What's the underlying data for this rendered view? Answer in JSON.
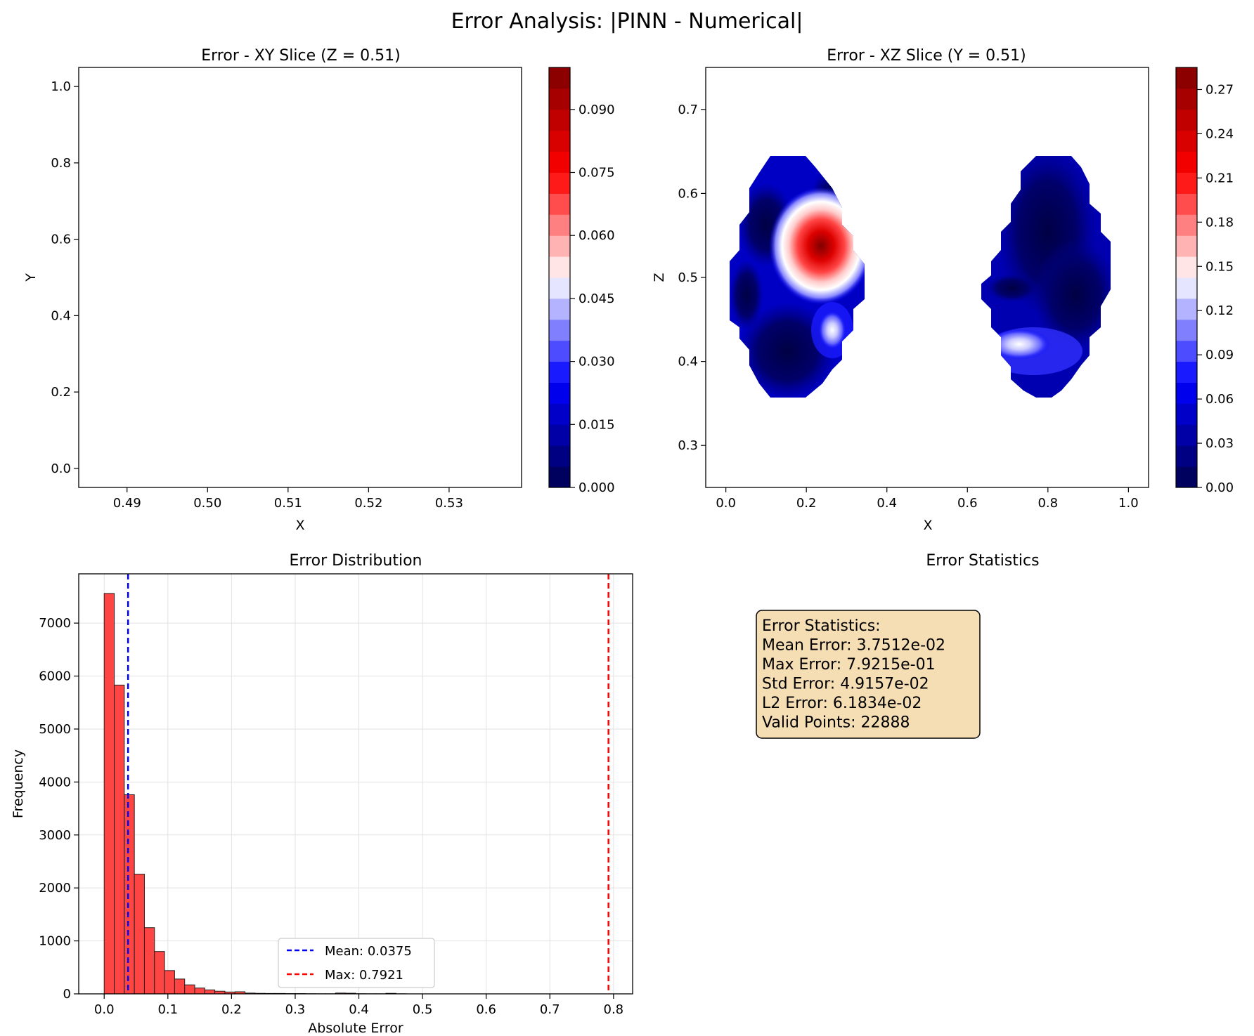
{
  "figure_title": "Error Analysis: |PINN - Numerical|",
  "chart_data": [
    {
      "type": "heatmap",
      "title": "Error - XY Slice (Z = 0.51)",
      "xlabel": "X",
      "ylabel": "Y",
      "xlim": [
        0.484,
        0.539
      ],
      "ylim": [
        -0.05,
        1.05
      ],
      "x_ticks": [
        "0.49",
        "0.50",
        "0.51",
        "0.52",
        "0.53"
      ],
      "y_ticks": [
        "0.0",
        "0.2",
        "0.4",
        "0.6",
        "0.8",
        "1.0"
      ],
      "colorbar": {
        "range": [
          0,
          0.1
        ],
        "ticks": [
          "0.000",
          "0.015",
          "0.030",
          "0.045",
          "0.060",
          "0.075",
          "0.090"
        ]
      }
    },
    {
      "type": "heatmap",
      "title": "Error - XZ Slice (Y = 0.51)",
      "xlabel": "X",
      "ylabel": "Z",
      "xlim": [
        -0.05,
        1.05
      ],
      "ylim": [
        0.25,
        0.75
      ],
      "x_ticks": [
        "0.0",
        "0.2",
        "0.4",
        "0.6",
        "0.8",
        "1.0"
      ],
      "y_ticks": [
        "0.3",
        "0.4",
        "0.5",
        "0.6",
        "0.7"
      ],
      "colorbar": {
        "range": [
          0,
          0.285
        ],
        "ticks": [
          "0.00",
          "0.03",
          "0.06",
          "0.09",
          "0.12",
          "0.15",
          "0.18",
          "0.21",
          "0.24",
          "0.27"
        ]
      }
    },
    {
      "type": "bar",
      "title": "Error Distribution",
      "xlabel": "Absolute Error",
      "ylabel": "Frequency",
      "xlim": [
        -0.04,
        0.83
      ],
      "ylim": [
        0,
        7930
      ],
      "bin_width": 0.0158,
      "bin_start": 0.0,
      "values": [
        7560,
        5830,
        3760,
        2260,
        1250,
        800,
        440,
        280,
        170,
        110,
        75,
        50,
        35,
        40,
        15,
        10,
        8,
        8,
        5,
        5,
        3,
        2,
        2,
        15,
        12,
        3,
        2,
        2,
        10,
        2
      ],
      "x_ticks": [
        "0.0",
        "0.1",
        "0.2",
        "0.3",
        "0.4",
        "0.5",
        "0.6",
        "0.7",
        "0.8"
      ],
      "y_ticks": [
        "0",
        "1000",
        "2000",
        "3000",
        "4000",
        "5000",
        "6000",
        "7000"
      ],
      "mean_line": 0.0375,
      "max_line": 0.7921,
      "grid": true,
      "legend": {
        "placement": "lower-center",
        "mean_label": "Mean: 0.0375",
        "max_label": "Max: 0.7921"
      }
    }
  ],
  "stats_panel": {
    "title": "Error Statistics",
    "lines": [
      "Error Statistics:",
      "Mean Error: 3.7512e-02",
      "Max Error: 7.9215e-01",
      "Std Error: 4.9157e-02",
      "L2 Error: 6.1834e-02",
      "Valid Points: 22888"
    ]
  },
  "colors": {
    "hist_fill": "#ff4444",
    "mean_line": "#0000ff",
    "max_line": "#ff0000",
    "stats_box": "#f5deb3"
  }
}
